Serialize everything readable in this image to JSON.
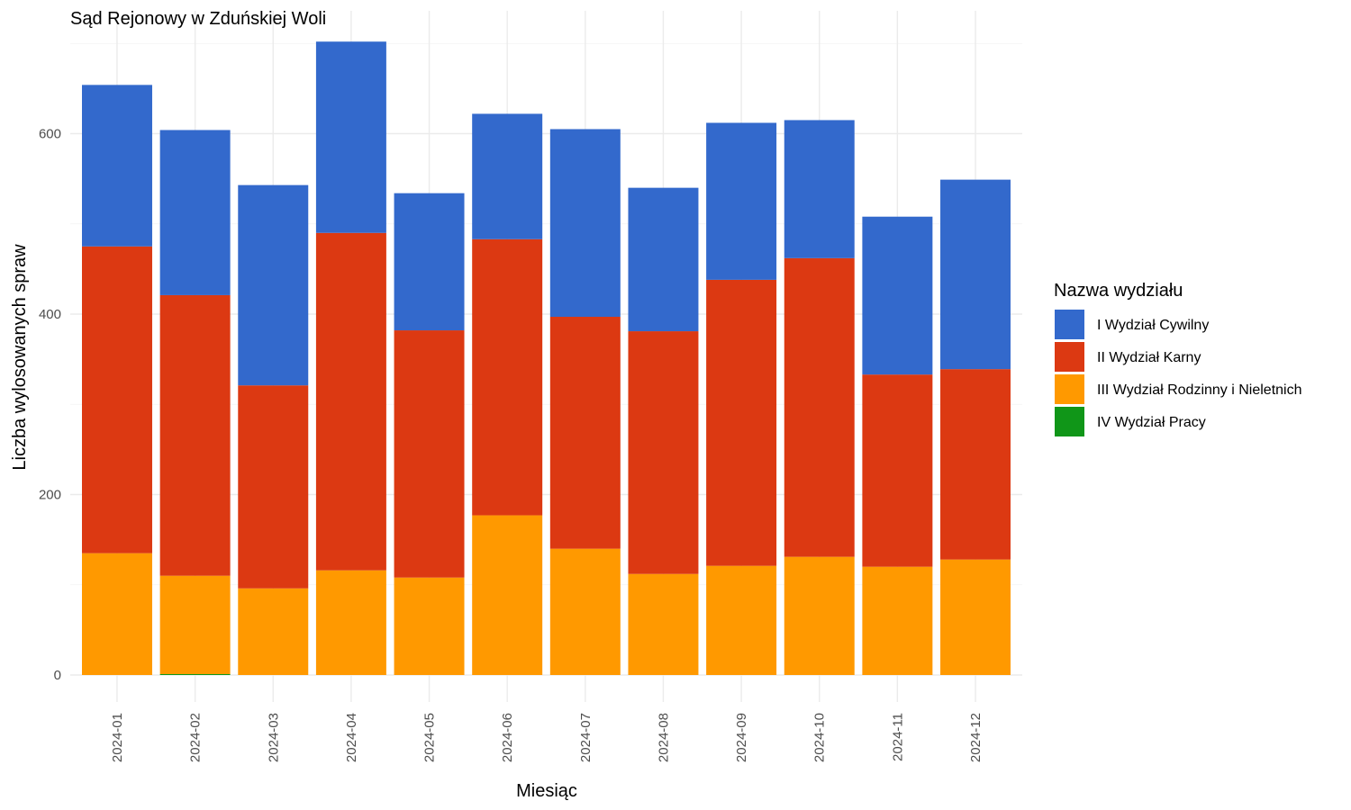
{
  "chart_data": {
    "type": "bar",
    "stacked": true,
    "title": "Sąd Rejonowy w Zduńskiej Woli",
    "xlabel": "Miesiąc",
    "ylabel": "Liczba wylosowanych spraw",
    "ylim": [
      0,
      700
    ],
    "yticks": [
      0,
      200,
      400,
      600
    ],
    "grid": true,
    "legend_title": "Nazwa wydziału",
    "legend_position": "right",
    "categories": [
      "2024-01",
      "2024-02",
      "2024-03",
      "2024-04",
      "2024-05",
      "2024-06",
      "2024-07",
      "2024-08",
      "2024-09",
      "2024-10",
      "2024-11",
      "2024-12"
    ],
    "series": [
      {
        "name": "I Wydział Cywilny",
        "color": "#3369cc",
        "values": [
          179,
          183,
          222,
          212,
          152,
          139,
          208,
          159,
          174,
          153,
          175,
          210
        ]
      },
      {
        "name": "II Wydział Karny",
        "color": "#dc3912",
        "values": [
          340,
          311,
          225,
          374,
          274,
          306,
          257,
          269,
          317,
          331,
          213,
          211
        ]
      },
      {
        "name": "III Wydział Rodzinny i Nieletnich",
        "color": "#ff9900",
        "values": [
          135,
          109,
          96,
          116,
          108,
          177,
          140,
          112,
          121,
          131,
          120,
          128
        ]
      },
      {
        "name": "IV Wydział Pracy",
        "color": "#109618",
        "values": [
          0,
          1,
          0,
          0,
          0,
          0,
          0,
          0,
          0,
          0,
          0,
          0
        ]
      }
    ]
  }
}
